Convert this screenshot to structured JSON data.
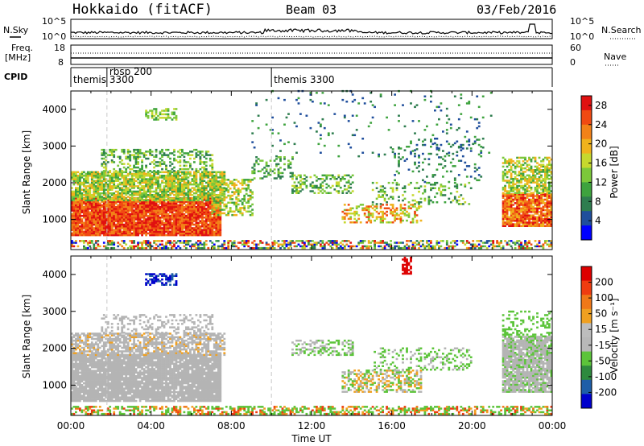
{
  "header": {
    "station": "Hokkaido (fitACF)",
    "beam": "Beam 03",
    "date": "03/Feb/2016"
  },
  "strips": {
    "nsky_label": "N.Sky",
    "nsearch_label": "N.Search",
    "freq_label_1": "Freq.",
    "freq_label_2": "[MHz]",
    "nave_label": "Nave",
    "cpid_label": "CPID",
    "left_top_tick": "10^5",
    "left_bottom_tick": "10^0",
    "right_top_tick": "10^5",
    "right_bottom_tick": "10^0",
    "freq_ticks": [
      "18",
      "8"
    ],
    "nave_ticks": [
      "60",
      "0"
    ]
  },
  "cpid_segments": [
    {
      "label": "themis",
      "start_ut": 0.0
    },
    {
      "label": "rbsp 200",
      "label2": "3300",
      "start_ut": 1.8
    },
    {
      "label": "themis 3300",
      "start_ut": 10.0
    }
  ],
  "colors": {
    "power_scale": [
      "#0000ff",
      "#1f4e9c",
      "#2e7d4f",
      "#3ea33e",
      "#7cc83a",
      "#c6d82e",
      "#f0b21c",
      "#f28218",
      "#f04a12",
      "#e01010"
    ],
    "velocity_scale": [
      "#0000cc",
      "#1e5ea8",
      "#2e8a3e",
      "#5cc43a",
      "#b8b8b8",
      "#bdbdbd",
      "#f0a020",
      "#f07818",
      "#ef3c10",
      "#dd0000"
    ],
    "ground_scatter": "#b4b4b4"
  },
  "chart_data": [
    {
      "type": "heatmap",
      "title": "",
      "xlabel": "Time UT",
      "ylabel": "Slant Range [km]",
      "xlim": [
        0,
        24
      ],
      "ylim": [
        180,
        4500
      ],
      "x_tick_labels": [
        "00:00",
        "04:00",
        "08:00",
        "12:00",
        "16:00",
        "20:00",
        "00:00"
      ],
      "y_tick_labels": [
        "1000",
        "2000",
        "3000",
        "4000"
      ],
      "colorbar": {
        "label": "Power [dB]",
        "range": [
          0,
          30
        ],
        "tick_labels": [
          "4",
          "8",
          "12",
          "16",
          "20",
          "24",
          "28"
        ]
      }
    },
    {
      "type": "heatmap",
      "title": "",
      "xlabel": "Time UT",
      "ylabel": "Slant Range [km]",
      "xlim": [
        0,
        24
      ],
      "ylim": [
        180,
        4500
      ],
      "x_tick_labels": [
        "00:00",
        "04:00",
        "08:00",
        "12:00",
        "16:00",
        "20:00",
        "00:00"
      ],
      "y_tick_labels": [
        "1000",
        "2000",
        "3000",
        "4000"
      ],
      "colorbar": {
        "label": "Velocity [m s⁻¹]",
        "range": [
          -250,
          250
        ],
        "tick_labels": [
          "200",
          "100",
          "50",
          "15",
          "-15",
          "-50",
          "-100",
          "-200"
        ]
      }
    }
  ]
}
